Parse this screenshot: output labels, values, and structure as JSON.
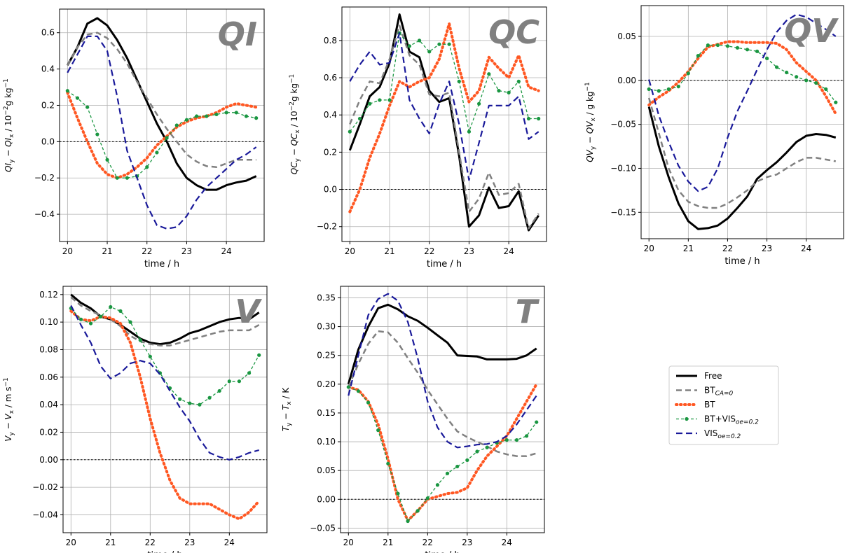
{
  "series_styles": {
    "Free": {
      "color": "#000000",
      "dash": "",
      "width": 3,
      "markers": false
    },
    "BT_CA0": {
      "color": "#808080",
      "dash": "8 5",
      "width": 2.5,
      "markers": false
    },
    "BT": {
      "color": "#ff5722",
      "dash": "1.5 4.5",
      "width": 4,
      "markers": false
    },
    "BT_VIS": {
      "color": "#1a9641",
      "dash": "4 3",
      "width": 1.3,
      "markers": true
    },
    "VIS": {
      "color": "#1a1a9a",
      "dash": "9 5",
      "width": 2.2,
      "markers": false
    }
  },
  "legend": [
    {
      "key": "Free",
      "text": "Free",
      "sub": ""
    },
    {
      "key": "BT_CA0",
      "text": "BT",
      "sub": "CA=0"
    },
    {
      "key": "BT",
      "text": "BT",
      "sub": ""
    },
    {
      "key": "BT_VIS",
      "text": "BT+VIS",
      "sub": "oe=0.2"
    },
    {
      "key": "VIS",
      "text": "VIS",
      "sub": "oe=0.2"
    }
  ],
  "chart_data": [
    {
      "type": "line",
      "title": "QI",
      "xlabel": "time / h",
      "ylabel": "QI_y − QI_x / 10^-2 g kg^-1",
      "ylabel_parts": [
        [
          "QI",
          ""
        ],
        [
          "y",
          "sub"
        ],
        [
          " − QI",
          ""
        ],
        [
          "x",
          "sub"
        ],
        [
          " / 10",
          ""
        ],
        [
          "−2",
          "sup"
        ],
        [
          "g kg",
          ""
        ],
        [
          "−1",
          "sup"
        ]
      ],
      "xlim": [
        19.8,
        24.95
      ],
      "ylim": [
        -0.55,
        0.73
      ],
      "xticks": [
        20,
        21,
        22,
        23,
        24
      ],
      "yticks": [
        -0.4,
        -0.2,
        0.0,
        0.2,
        0.4,
        0.6
      ],
      "yticklabels": [
        "−0.4",
        "−0.2",
        "0.0",
        "0.2",
        "0.4",
        "0.6"
      ],
      "x": [
        20.0,
        20.25,
        20.5,
        20.75,
        21.0,
        21.25,
        21.5,
        21.75,
        22.0,
        22.25,
        22.5,
        22.75,
        23.0,
        23.25,
        23.5,
        23.75,
        24.0,
        24.25,
        24.5,
        24.75
      ],
      "series": [
        {
          "key": "Free",
          "values": [
            0.42,
            0.52,
            0.65,
            0.68,
            0.64,
            0.56,
            0.46,
            0.34,
            0.22,
            0.1,
            0.0,
            -0.12,
            -0.2,
            -0.24,
            -0.265,
            -0.265,
            -0.24,
            -0.225,
            -0.215,
            -0.19
          ]
        },
        {
          "key": "BT_CA0",
          "values": [
            0.42,
            0.52,
            0.59,
            0.6,
            0.57,
            0.51,
            0.43,
            0.33,
            0.24,
            0.15,
            0.07,
            0.0,
            -0.07,
            -0.11,
            -0.135,
            -0.14,
            -0.12,
            -0.1,
            -0.1,
            -0.1
          ]
        },
        {
          "key": "BT",
          "values": [
            0.27,
            0.13,
            0.0,
            -0.12,
            -0.18,
            -0.2,
            -0.18,
            -0.14,
            -0.09,
            -0.02,
            0.03,
            0.08,
            0.11,
            0.13,
            0.14,
            0.16,
            0.19,
            0.21,
            0.2,
            0.19
          ]
        },
        {
          "key": "BT_VIS",
          "values": [
            0.28,
            0.24,
            0.19,
            0.04,
            -0.1,
            -0.2,
            -0.2,
            -0.19,
            -0.14,
            -0.06,
            0.02,
            0.09,
            0.12,
            0.14,
            0.14,
            0.15,
            0.16,
            0.16,
            0.14,
            0.13
          ]
        },
        {
          "key": "VIS",
          "values": [
            0.38,
            0.48,
            0.58,
            0.58,
            0.5,
            0.25,
            -0.05,
            -0.2,
            -0.35,
            -0.46,
            -0.48,
            -0.47,
            -0.41,
            -0.32,
            -0.25,
            -0.2,
            -0.15,
            -0.1,
            -0.07,
            -0.03
          ]
        }
      ]
    },
    {
      "type": "line",
      "title": "QC",
      "xlabel": "time / h",
      "ylabel": "QC_y − QC_x / 10^-2 g kg^-1",
      "ylabel_parts": [
        [
          "QC",
          ""
        ],
        [
          "y",
          "sub"
        ],
        [
          " − QC",
          ""
        ],
        [
          "x",
          "sub"
        ],
        [
          " / 10",
          ""
        ],
        [
          "−2",
          "sup"
        ],
        [
          "g kg",
          ""
        ],
        [
          "−1",
          "sup"
        ]
      ],
      "xlim": [
        19.8,
        24.95
      ],
      "ylim": [
        -0.28,
        0.98
      ],
      "xticks": [
        20,
        21,
        22,
        23,
        24
      ],
      "yticks": [
        -0.2,
        0.0,
        0.2,
        0.4,
        0.6,
        0.8
      ],
      "yticklabels": [
        "−0.2",
        "0.0",
        "0.2",
        "0.4",
        "0.6",
        "0.8"
      ],
      "x": [
        20.0,
        20.25,
        20.5,
        20.75,
        21.0,
        21.25,
        21.5,
        21.75,
        22.0,
        22.25,
        22.5,
        22.75,
        23.0,
        23.25,
        23.5,
        23.75,
        24.0,
        24.25,
        24.5,
        24.75
      ],
      "series": [
        {
          "key": "Free",
          "values": [
            0.21,
            0.35,
            0.5,
            0.55,
            0.68,
            0.94,
            0.74,
            0.71,
            0.53,
            0.47,
            0.49,
            0.18,
            -0.2,
            -0.14,
            0.01,
            -0.1,
            -0.09,
            -0.01,
            -0.22,
            -0.14
          ]
        },
        {
          "key": "BT_CA0",
          "values": [
            0.35,
            0.48,
            0.58,
            0.57,
            0.7,
            0.88,
            0.72,
            0.67,
            0.51,
            0.5,
            0.52,
            0.2,
            -0.12,
            -0.05,
            0.09,
            -0.03,
            -0.02,
            0.03,
            -0.21,
            -0.13
          ]
        },
        {
          "key": "BT",
          "values": [
            -0.12,
            0.0,
            0.17,
            0.3,
            0.45,
            0.58,
            0.55,
            0.58,
            0.6,
            0.7,
            0.89,
            0.65,
            0.47,
            0.53,
            0.71,
            0.65,
            0.6,
            0.72,
            0.55,
            0.53
          ]
        },
        {
          "key": "BT_VIS",
          "values": [
            0.31,
            0.38,
            0.46,
            0.48,
            0.48,
            0.84,
            0.77,
            0.8,
            0.74,
            0.78,
            0.78,
            0.58,
            0.31,
            0.46,
            0.62,
            0.53,
            0.52,
            0.58,
            0.38,
            0.38
          ]
        },
        {
          "key": "VIS",
          "values": [
            0.58,
            0.67,
            0.74,
            0.67,
            0.68,
            0.84,
            0.48,
            0.38,
            0.3,
            0.46,
            0.58,
            0.35,
            0.05,
            0.25,
            0.45,
            0.45,
            0.45,
            0.5,
            0.27,
            0.31
          ]
        }
      ]
    },
    {
      "type": "line",
      "title": "QV",
      "xlabel": "time / h",
      "ylabel": "QV_y − QV_x / g kg^-1",
      "ylabel_parts": [
        [
          "QV",
          ""
        ],
        [
          "y",
          "sub"
        ],
        [
          " − QV",
          ""
        ],
        [
          "x",
          "sub"
        ],
        [
          " / g kg",
          ""
        ],
        [
          "−1",
          "sup"
        ]
      ],
      "xlim": [
        19.8,
        24.95
      ],
      "ylim": [
        -0.18,
        0.085
      ],
      "xticks": [
        20,
        21,
        22,
        23,
        24
      ],
      "yticks": [
        -0.15,
        -0.1,
        -0.05,
        0.0,
        0.05
      ],
      "yticklabels": [
        "−0.15",
        "−0.10",
        "−0.05",
        "0.00",
        "0.05"
      ],
      "x": [
        20.0,
        20.25,
        20.5,
        20.75,
        21.0,
        21.25,
        21.5,
        21.75,
        22.0,
        22.25,
        22.5,
        22.75,
        23.0,
        23.25,
        23.5,
        23.75,
        24.0,
        24.25,
        24.5,
        24.75
      ],
      "series": [
        {
          "key": "Free",
          "values": [
            -0.03,
            -0.075,
            -0.11,
            -0.14,
            -0.16,
            -0.169,
            -0.168,
            -0.165,
            -0.157,
            -0.145,
            -0.132,
            -0.112,
            -0.102,
            -0.093,
            -0.082,
            -0.07,
            -0.063,
            -0.061,
            -0.062,
            -0.065
          ]
        },
        {
          "key": "BT_CA0",
          "values": [
            -0.02,
            -0.06,
            -0.1,
            -0.125,
            -0.138,
            -0.143,
            -0.145,
            -0.145,
            -0.14,
            -0.133,
            -0.125,
            -0.115,
            -0.11,
            -0.107,
            -0.1,
            -0.093,
            -0.088,
            -0.088,
            -0.09,
            -0.092
          ]
        },
        {
          "key": "BT",
          "values": [
            -0.028,
            -0.019,
            -0.012,
            -0.002,
            0.01,
            0.025,
            0.038,
            0.041,
            0.044,
            0.044,
            0.043,
            0.043,
            0.043,
            0.042,
            0.035,
            0.02,
            0.01,
            0.0,
            -0.018,
            -0.038
          ]
        },
        {
          "key": "BT_VIS",
          "values": [
            -0.01,
            -0.012,
            -0.01,
            -0.007,
            0.008,
            0.028,
            0.04,
            0.04,
            0.039,
            0.037,
            0.035,
            0.033,
            0.025,
            0.015,
            0.009,
            0.004,
            0.0,
            -0.003,
            -0.01,
            -0.025
          ]
        },
        {
          "key": "VIS",
          "values": [
            0.001,
            -0.04,
            -0.07,
            -0.097,
            -0.115,
            -0.126,
            -0.121,
            -0.1,
            -0.065,
            -0.035,
            -0.012,
            0.012,
            0.035,
            0.055,
            0.068,
            0.075,
            0.072,
            0.065,
            0.058,
            0.05
          ]
        }
      ]
    },
    {
      "type": "line",
      "title": "V",
      "xlabel": "time / h",
      "ylabel": "V_y − V_x / m s^-1",
      "ylabel_parts": [
        [
          "V",
          ""
        ],
        [
          "y",
          "sub"
        ],
        [
          " − V",
          ""
        ],
        [
          "x",
          "sub"
        ],
        [
          " / m s",
          ""
        ],
        [
          "−1",
          "sup"
        ]
      ],
      "xlim": [
        19.8,
        24.95
      ],
      "ylim": [
        -0.053,
        0.126
      ],
      "xticks": [
        20,
        21,
        22,
        23,
        24
      ],
      "yticks": [
        -0.04,
        -0.02,
        0.0,
        0.02,
        0.04,
        0.06,
        0.08,
        0.1,
        0.12
      ],
      "yticklabels": [
        "−0.04",
        "−0.02",
        "0.00",
        "0.02",
        "0.04",
        "0.06",
        "0.08",
        "0.10",
        "0.12"
      ],
      "x": [
        20.0,
        20.25,
        20.5,
        20.75,
        21.0,
        21.25,
        21.5,
        21.75,
        22.0,
        22.25,
        22.5,
        22.75,
        23.0,
        23.25,
        23.5,
        23.75,
        24.0,
        24.25,
        24.5,
        24.75
      ],
      "series": [
        {
          "key": "Free",
          "values": [
            0.12,
            0.114,
            0.11,
            0.104,
            0.102,
            0.098,
            0.093,
            0.088,
            0.085,
            0.084,
            0.085,
            0.088,
            0.092,
            0.094,
            0.097,
            0.1,
            0.102,
            0.103,
            0.102,
            0.107
          ]
        },
        {
          "key": "BT_CA0",
          "values": [
            0.118,
            0.112,
            0.108,
            0.105,
            0.102,
            0.097,
            0.09,
            0.086,
            0.084,
            0.083,
            0.083,
            0.085,
            0.087,
            0.089,
            0.091,
            0.093,
            0.094,
            0.094,
            0.094,
            0.098
          ]
        },
        {
          "key": "BT",
          "values": [
            0.108,
            0.102,
            0.101,
            0.104,
            0.103,
            0.099,
            0.085,
            0.06,
            0.03,
            0.005,
            -0.015,
            -0.028,
            -0.032,
            -0.032,
            -0.032,
            -0.036,
            -0.04,
            -0.043,
            -0.038,
            -0.03
          ]
        },
        {
          "key": "BT_VIS",
          "values": [
            0.11,
            0.102,
            0.099,
            0.104,
            0.111,
            0.108,
            0.1,
            0.087,
            0.075,
            0.063,
            0.052,
            0.044,
            0.041,
            0.04,
            0.045,
            0.05,
            0.057,
            0.057,
            0.063,
            0.076
          ]
        },
        {
          "key": "VIS",
          "values": [
            0.112,
            0.098,
            0.085,
            0.068,
            0.059,
            0.063,
            0.07,
            0.072,
            0.07,
            0.062,
            0.05,
            0.038,
            0.028,
            0.015,
            0.005,
            0.002,
            0.0,
            0.002,
            0.005,
            0.007
          ]
        }
      ]
    },
    {
      "type": "line",
      "title": "T",
      "xlabel": "time / h",
      "ylabel": "T_y − T_x / K",
      "ylabel_parts": [
        [
          "T",
          ""
        ],
        [
          "y",
          "sub"
        ],
        [
          " − T",
          ""
        ],
        [
          "x",
          "sub"
        ],
        [
          " / K",
          ""
        ]
      ],
      "xlim": [
        19.8,
        24.95
      ],
      "ylim": [
        -0.058,
        0.37
      ],
      "xticks": [
        20,
        21,
        22,
        23,
        24
      ],
      "yticks": [
        -0.05,
        0.0,
        0.05,
        0.1,
        0.15,
        0.2,
        0.25,
        0.3,
        0.35
      ],
      "yticklabels": [
        "−0.05",
        "0.00",
        "0.05",
        "0.10",
        "0.15",
        "0.20",
        "0.25",
        "0.30",
        "0.35"
      ],
      "x": [
        20.0,
        20.25,
        20.5,
        20.75,
        21.0,
        21.25,
        21.5,
        21.75,
        22.0,
        22.25,
        22.5,
        22.75,
        23.0,
        23.25,
        23.5,
        23.75,
        24.0,
        24.25,
        24.5,
        24.75
      ],
      "series": [
        {
          "key": "Free",
          "values": [
            0.2,
            0.26,
            0.3,
            0.332,
            0.338,
            0.33,
            0.318,
            0.31,
            0.298,
            0.285,
            0.272,
            0.25,
            0.249,
            0.248,
            0.243,
            0.243,
            0.243,
            0.244,
            0.25,
            0.262
          ]
        },
        {
          "key": "BT_CA0",
          "values": [
            0.195,
            0.235,
            0.27,
            0.292,
            0.29,
            0.272,
            0.245,
            0.22,
            0.19,
            0.165,
            0.14,
            0.118,
            0.108,
            0.1,
            0.092,
            0.083,
            0.078,
            0.075,
            0.075,
            0.08
          ]
        },
        {
          "key": "BT",
          "values": [
            0.195,
            0.19,
            0.17,
            0.13,
            0.07,
            0.0,
            -0.037,
            -0.02,
            0.0,
            0.005,
            0.01,
            0.012,
            0.02,
            0.05,
            0.075,
            0.092,
            0.11,
            0.14,
            0.17,
            0.2
          ]
        },
        {
          "key": "BT_VIS",
          "values": [
            0.195,
            0.188,
            0.168,
            0.12,
            0.062,
            0.01,
            -0.038,
            -0.02,
            0.002,
            0.025,
            0.045,
            0.057,
            0.068,
            0.083,
            0.09,
            0.098,
            0.103,
            0.103,
            0.11,
            0.134
          ]
        },
        {
          "key": "VIS",
          "values": [
            0.18,
            0.25,
            0.32,
            0.348,
            0.357,
            0.345,
            0.308,
            0.245,
            0.17,
            0.125,
            0.1,
            0.09,
            0.092,
            0.095,
            0.096,
            0.1,
            0.11,
            0.13,
            0.155,
            0.18
          ]
        }
      ]
    }
  ]
}
